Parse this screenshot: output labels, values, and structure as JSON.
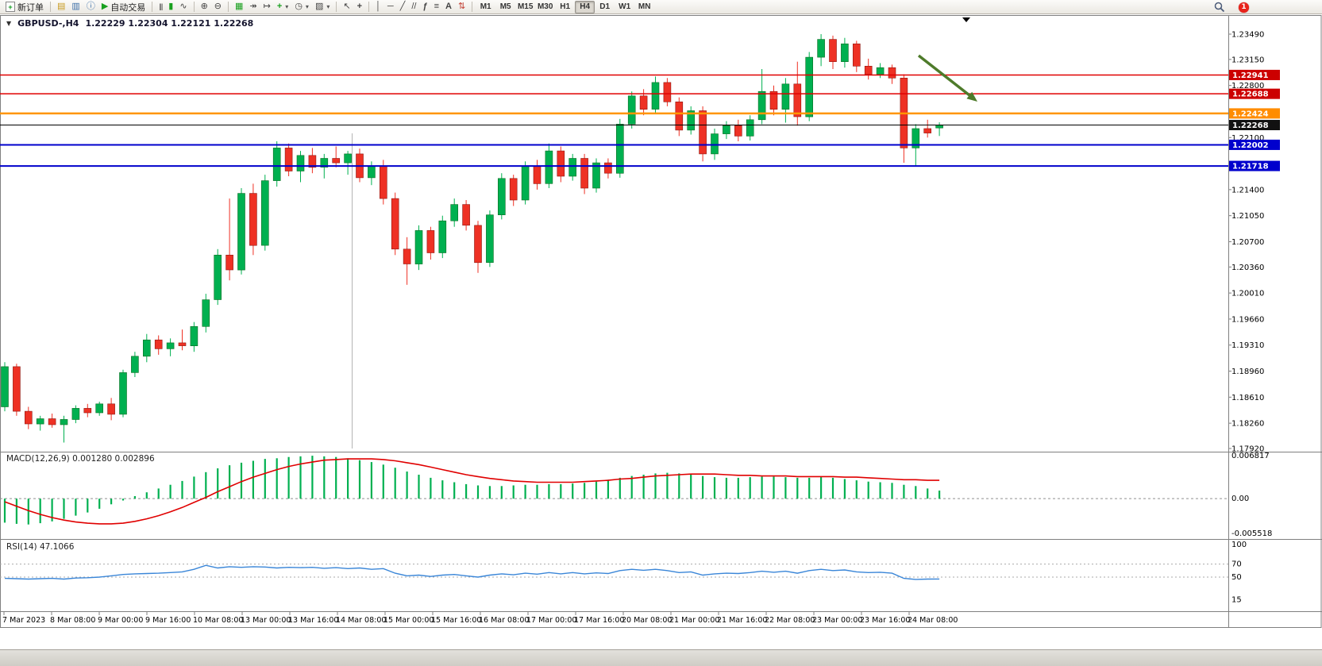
{
  "toolbar": {
    "new_order_label": "新订单",
    "autotrading_label": "自动交易",
    "timeframes": [
      "M1",
      "M5",
      "M15",
      "M30",
      "H1",
      "H4",
      "D1",
      "W1",
      "MN"
    ],
    "active_timeframe": "H4",
    "notification_count": "1",
    "icons": {
      "new_order_glyph": "+",
      "market_watch": "▤",
      "navigator": "▥",
      "terminal": "ⓘ",
      "autotrading_glyph": "▶",
      "bars": "|||",
      "candles": "▮",
      "line_chart": "∿",
      "zoom_in": "⊕",
      "zoom_out": "⊖",
      "tile": "▦",
      "autoscroll": "↠",
      "shift": "↦",
      "indicators": "+",
      "periods": "◷",
      "templates": "▨",
      "cursor": "↖",
      "crosshair": "+",
      "vline": "│",
      "hline": "─",
      "trendline": "╱",
      "channel": "//",
      "fibo": "ƒ",
      "lines_stack": "≡",
      "text_tool": "A",
      "arrows": "⇅",
      "dropdown": "▾"
    }
  },
  "chart": {
    "collapse_glyph": "▼",
    "symbol_label": "GBPUSD-,H4",
    "ohlc_label": "1.22229 1.22304 1.22121 1.22268",
    "colors": {
      "bull": "#00b050",
      "bear": "#ee3124"
    },
    "axis_ticks": [
      "1.23490",
      "1.23150",
      "1.22800",
      "1.22100",
      "1.21400",
      "1.21050",
      "1.20700",
      "1.20360",
      "1.20010",
      "1.19660",
      "1.19310",
      "1.18960",
      "1.18610",
      "1.18260",
      "1.17920"
    ],
    "levels": [
      {
        "price": 1.22941,
        "label": "1.22941",
        "color": "#e00000",
        "badge": "#cc0000",
        "width": 1.5
      },
      {
        "price": 1.22688,
        "label": "1.22688",
        "color": "#e00000",
        "badge": "#cc0000",
        "width": 1.5
      },
      {
        "price": 1.22424,
        "label": "1.22424",
        "color": "#ff9500",
        "badge": "#ff8c00",
        "width": 2.5
      },
      {
        "price": 1.22268,
        "label": "1.22268",
        "color": "#000000",
        "badge": "#111111",
        "width": 1
      },
      {
        "price": 1.22002,
        "label": "1.22002",
        "color": "#0000cc",
        "badge": "#0000cd",
        "width": 2
      },
      {
        "price": 1.21718,
        "label": "1.21718",
        "color": "#0000cc",
        "badge": "#0000cd",
        "width": 2
      }
    ],
    "arrow": {
      "color": "#4e7b2a"
    },
    "time_labels": [
      "7 Mar 2023",
      "8 Mar 08:00",
      "9 Mar 00:00",
      "9 Mar 16:00",
      "10 Mar 08:00",
      "13 Mar 00:00",
      "13 Mar 16:00",
      "14 Mar 08:00",
      "15 Mar 00:00",
      "15 Mar 16:00",
      "16 Mar 08:00",
      "17 Mar 00:00",
      "17 Mar 16:00",
      "20 Mar 08:00",
      "21 Mar 00:00",
      "21 Mar 16:00",
      "22 Mar 08:00",
      "23 Mar 00:00",
      "23 Mar 16:00",
      "24 Mar 08:00"
    ],
    "candles": [
      [
        1.1848,
        1.1908,
        1.1842,
        1.1902
      ],
      [
        1.1902,
        1.1906,
        1.1836,
        1.1842
      ],
      [
        1.1842,
        1.1848,
        1.1818,
        1.1825
      ],
      [
        1.1825,
        1.1836,
        1.1816,
        1.1832
      ],
      [
        1.1832,
        1.1839,
        1.182,
        1.1824
      ],
      [
        1.1824,
        1.1836,
        1.18,
        1.1831
      ],
      [
        1.1831,
        1.185,
        1.1826,
        1.1846
      ],
      [
        1.1846,
        1.1852,
        1.1834,
        1.184
      ],
      [
        1.184,
        1.1855,
        1.1836,
        1.1852
      ],
      [
        1.1852,
        1.186,
        1.183,
        1.1838
      ],
      [
        1.1838,
        1.1898,
        1.1834,
        1.1894
      ],
      [
        1.1894,
        1.1922,
        1.1888,
        1.1916
      ],
      [
        1.1916,
        1.1946,
        1.1908,
        1.1938
      ],
      [
        1.1938,
        1.1944,
        1.1918,
        1.1926
      ],
      [
        1.1926,
        1.194,
        1.1916,
        1.1934
      ],
      [
        1.1934,
        1.1952,
        1.1924,
        1.193
      ],
      [
        1.193,
        1.1962,
        1.1922,
        1.1956
      ],
      [
        1.1956,
        1.2,
        1.1948,
        1.1992
      ],
      [
        1.1992,
        1.206,
        1.1985,
        1.2052
      ],
      [
        1.2052,
        1.2128,
        1.2018,
        1.2032
      ],
      [
        1.2032,
        1.2142,
        1.2026,
        1.2135
      ],
      [
        1.2135,
        1.2148,
        1.2052,
        1.2065
      ],
      [
        1.2065,
        1.216,
        1.2058,
        1.2152
      ],
      [
        1.2152,
        1.2205,
        1.2144,
        1.2196
      ],
      [
        1.2196,
        1.2202,
        1.2158,
        1.2165
      ],
      [
        1.2165,
        1.2192,
        1.215,
        1.2186
      ],
      [
        1.2186,
        1.2196,
        1.2162,
        1.217
      ],
      [
        1.217,
        1.2188,
        1.2155,
        1.2182
      ],
      [
        1.2182,
        1.2198,
        1.217,
        1.2176
      ],
      [
        1.2176,
        1.2192,
        1.216,
        1.2188
      ],
      [
        1.2188,
        1.2195,
        1.215,
        1.2156
      ],
      [
        1.2156,
        1.2178,
        1.2146,
        1.2172
      ],
      [
        1.2172,
        1.218,
        1.212,
        1.2128
      ],
      [
        1.2128,
        1.2136,
        1.2052,
        1.206
      ],
      [
        1.206,
        1.2076,
        1.2012,
        1.204
      ],
      [
        1.204,
        1.2092,
        1.2032,
        1.2085
      ],
      [
        1.2085,
        1.209,
        1.2046,
        1.2055
      ],
      [
        1.2055,
        1.2105,
        1.2048,
        1.2098
      ],
      [
        1.2098,
        1.2128,
        1.209,
        1.212
      ],
      [
        1.212,
        1.2126,
        1.2085,
        1.2092
      ],
      [
        1.2092,
        1.2098,
        1.2028,
        1.2042
      ],
      [
        1.2042,
        1.2112,
        1.2036,
        1.2106
      ],
      [
        1.2106,
        1.2162,
        1.21,
        1.2155
      ],
      [
        1.2155,
        1.216,
        1.2118,
        1.2126
      ],
      [
        1.2126,
        1.2178,
        1.212,
        1.2172
      ],
      [
        1.2172,
        1.218,
        1.214,
        1.2148
      ],
      [
        1.2148,
        1.2202,
        1.2142,
        1.2192
      ],
      [
        1.2192,
        1.2198,
        1.215,
        1.2158
      ],
      [
        1.2158,
        1.2188,
        1.2152,
        1.2182
      ],
      [
        1.2182,
        1.2188,
        1.2134,
        1.2142
      ],
      [
        1.2142,
        1.2182,
        1.2136,
        1.2176
      ],
      [
        1.2176,
        1.2182,
        1.2155,
        1.2162
      ],
      [
        1.2162,
        1.2235,
        1.2156,
        1.2228
      ],
      [
        1.2228,
        1.2272,
        1.2222,
        1.2266
      ],
      [
        1.2266,
        1.2275,
        1.224,
        1.2248
      ],
      [
        1.2248,
        1.2292,
        1.2242,
        1.2284
      ],
      [
        1.2284,
        1.229,
        1.2252,
        1.2258
      ],
      [
        1.2258,
        1.2264,
        1.2212,
        1.222
      ],
      [
        1.222,
        1.2252,
        1.2214,
        1.2246
      ],
      [
        1.2246,
        1.2252,
        1.2178,
        1.2188
      ],
      [
        1.2188,
        1.2222,
        1.218,
        1.2215
      ],
      [
        1.2215,
        1.2232,
        1.2208,
        1.2226
      ],
      [
        1.2226,
        1.2234,
        1.2205,
        1.2212
      ],
      [
        1.2212,
        1.224,
        1.2206,
        1.2234
      ],
      [
        1.2234,
        1.2302,
        1.2228,
        1.2272
      ],
      [
        1.2272,
        1.228,
        1.224,
        1.2248
      ],
      [
        1.2248,
        1.229,
        1.223,
        1.2282
      ],
      [
        1.2282,
        1.2312,
        1.2226,
        1.2238
      ],
      [
        1.2238,
        1.2325,
        1.2232,
        1.2318
      ],
      [
        1.2318,
        1.2349,
        1.2306,
        1.2342
      ],
      [
        1.2342,
        1.2347,
        1.2302,
        1.2312
      ],
      [
        1.2312,
        1.2344,
        1.2304,
        1.2336
      ],
      [
        1.2336,
        1.234,
        1.2298,
        1.2306
      ],
      [
        1.2306,
        1.2316,
        1.2288,
        1.2295
      ],
      [
        1.2295,
        1.231,
        1.229,
        1.2304
      ],
      [
        1.2304,
        1.2308,
        1.2282,
        1.229
      ],
      [
        1.229,
        1.2295,
        1.2176,
        1.2196
      ],
      [
        1.2196,
        1.2228,
        1.2172,
        1.2222
      ],
      [
        1.2222,
        1.2234,
        1.221,
        1.2216
      ],
      [
        1.22229,
        1.22304,
        1.22121,
        1.22268
      ]
    ]
  },
  "macd": {
    "label": "MACD(12,26,9) 0.001280 0.002896",
    "max_label": "0.006817",
    "zero_label": "0.00",
    "min_label": "-0.005518",
    "max": 0.006817,
    "min": -0.005518,
    "hist_color": "#00b050",
    "signal_color": "#e00000",
    "hist": [
      -0.0038,
      -0.004,
      -0.0041,
      -0.0039,
      -0.0036,
      -0.0032,
      -0.0027,
      -0.0022,
      -0.0016,
      -0.0009,
      -0.0003,
      0.0004,
      0.001,
      0.0016,
      0.0022,
      0.0028,
      0.0035,
      0.0042,
      0.0048,
      0.0053,
      0.0057,
      0.006,
      0.0063,
      0.0064,
      0.0066,
      0.0067,
      0.0068,
      0.0067,
      0.0066,
      0.0064,
      0.0061,
      0.0058,
      0.0054,
      0.0049,
      0.0043,
      0.0038,
      0.0033,
      0.0029,
      0.0026,
      0.0023,
      0.0021,
      0.002,
      0.002,
      0.0021,
      0.0022,
      0.0022,
      0.0023,
      0.0023,
      0.0024,
      0.0025,
      0.0027,
      0.003,
      0.0033,
      0.0036,
      0.0038,
      0.004,
      0.0041,
      0.004,
      0.0039,
      0.0036,
      0.0034,
      0.0033,
      0.0033,
      0.0034,
      0.0035,
      0.0035,
      0.0034,
      0.0033,
      0.0033,
      0.0034,
      0.0033,
      0.0031,
      0.0029,
      0.0027,
      0.0026,
      0.0025,
      0.0022,
      0.002,
      0.0016,
      0.00128
    ],
    "signal": [
      -0.0005,
      -0.0012,
      -0.0019,
      -0.0025,
      -0.003,
      -0.0034,
      -0.0037,
      -0.0039,
      -0.004,
      -0.004,
      -0.0039,
      -0.0036,
      -0.0032,
      -0.0027,
      -0.0021,
      -0.0014,
      -0.0006,
      0.0002,
      0.0011,
      0.0019,
      0.0027,
      0.0034,
      0.004,
      0.0046,
      0.0051,
      0.0055,
      0.0058,
      0.0061,
      0.0062,
      0.0063,
      0.0063,
      0.0063,
      0.0062,
      0.006,
      0.0057,
      0.0054,
      0.005,
      0.0046,
      0.0042,
      0.0038,
      0.0035,
      0.0032,
      0.003,
      0.0028,
      0.0027,
      0.0026,
      0.0026,
      0.0026,
      0.0026,
      0.0027,
      0.0028,
      0.0029,
      0.0031,
      0.0032,
      0.0034,
      0.0036,
      0.0037,
      0.0038,
      0.0039,
      0.0039,
      0.0039,
      0.0038,
      0.0037,
      0.0037,
      0.0036,
      0.0036,
      0.0036,
      0.0035,
      0.0035,
      0.0035,
      0.0035,
      0.0034,
      0.0034,
      0.0033,
      0.0032,
      0.0031,
      0.003,
      0.003,
      0.0029,
      0.0029
    ]
  },
  "rsi": {
    "label": "RSI(14) 47.1066",
    "color": "#3a86d8",
    "levels": [
      "100",
      "70",
      "50",
      "15"
    ],
    "values": [
      48,
      47.5,
      47,
      47.5,
      48,
      47,
      48.5,
      49,
      50,
      52,
      54,
      55,
      55.5,
      56,
      57,
      58,
      62,
      68,
      64,
      66,
      65,
      66,
      65.5,
      64,
      65,
      64.5,
      65,
      63.5,
      64.5,
      63,
      64,
      62,
      63,
      56,
      52,
      53,
      51,
      53,
      54,
      52,
      50,
      53,
      55,
      53.5,
      56,
      54.5,
      57,
      55,
      57,
      55,
      56.5,
      55.5,
      60,
      62,
      60.5,
      62,
      60,
      57,
      58,
      53,
      55,
      56,
      55.5,
      57,
      59,
      57.5,
      59,
      56,
      60,
      62,
      60,
      61,
      58,
      57,
      57.5,
      56,
      48,
      46.5,
      47,
      47.1
    ]
  }
}
